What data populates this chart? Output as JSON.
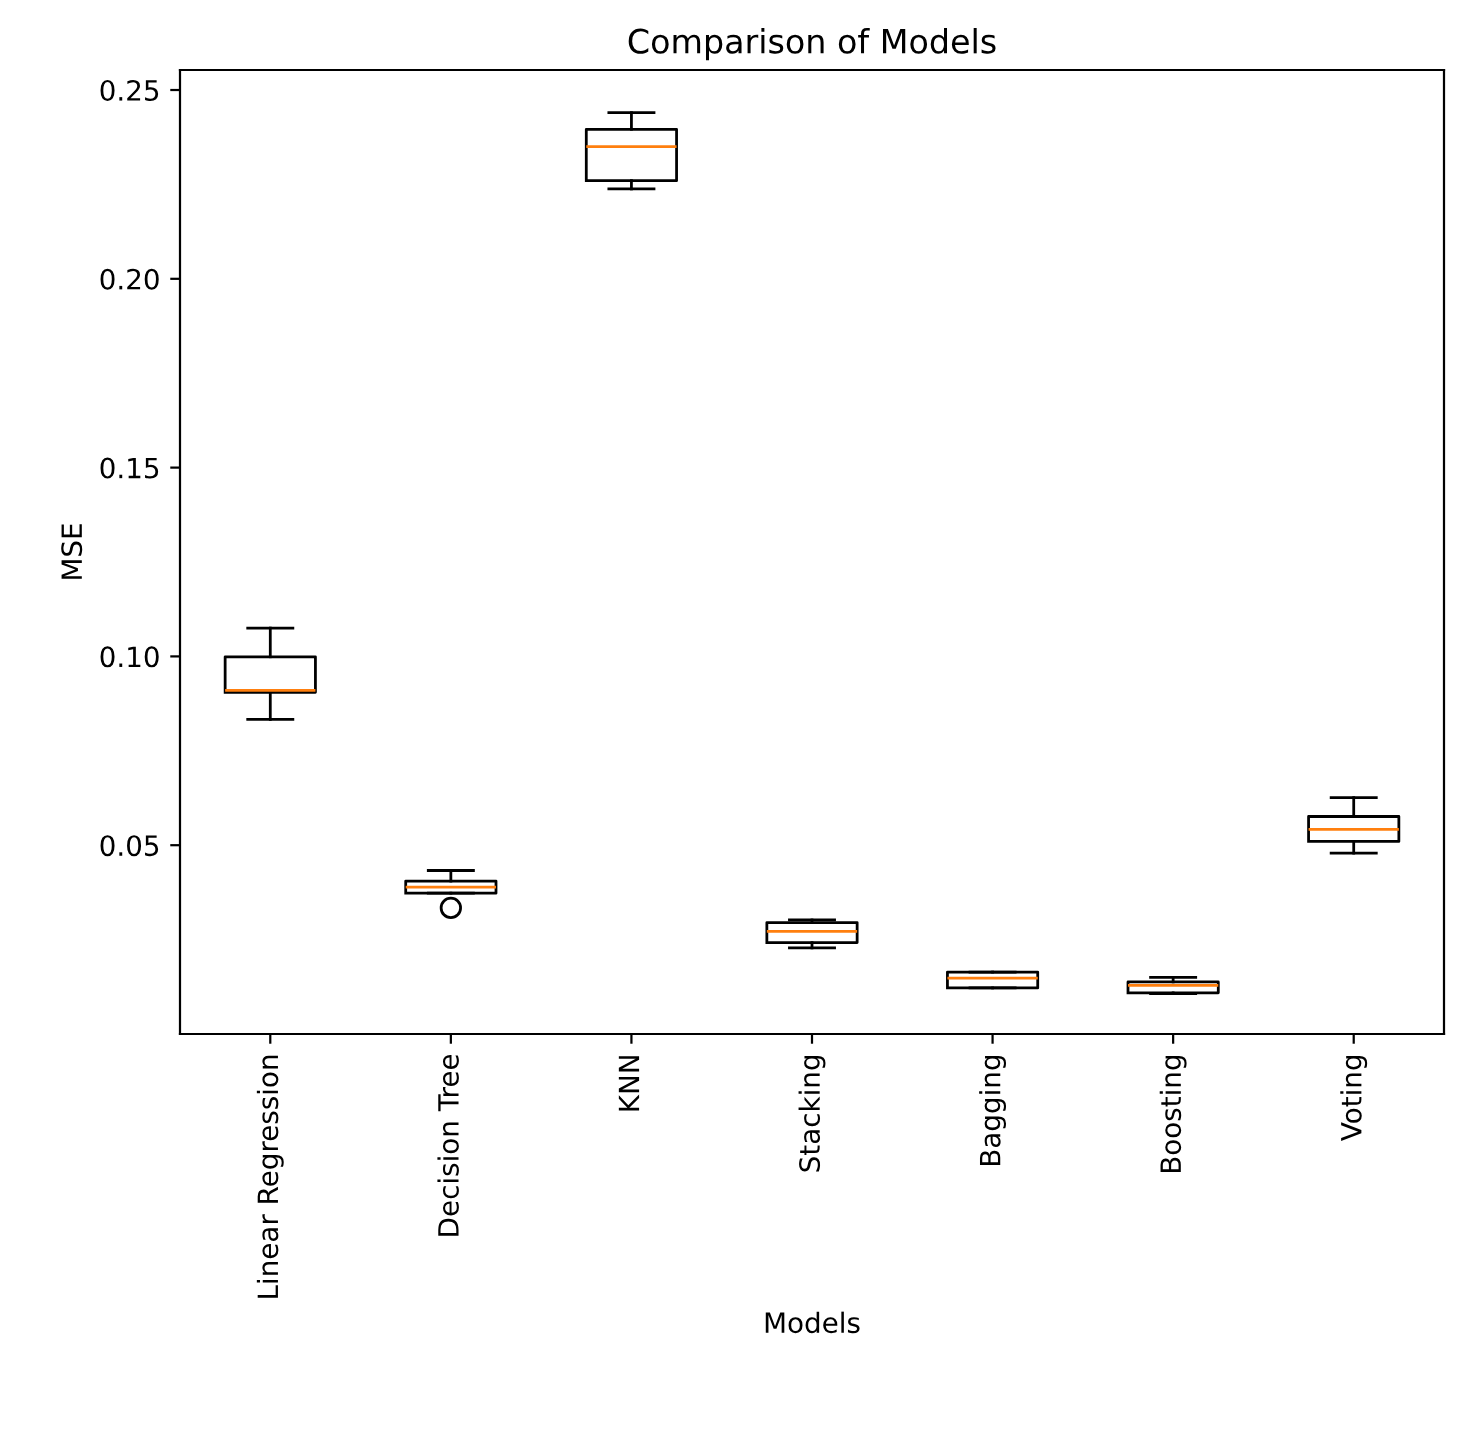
{
  "chart_data": {
    "type": "box",
    "title": "Comparison of Models",
    "xlabel": "Models",
    "ylabel": "MSE",
    "categories": [
      "Linear Regression",
      "Decision Tree",
      "KNN",
      "Stacking",
      "Bagging",
      "Boosting",
      "Voting"
    ],
    "boxes": [
      {
        "low": 0.0833,
        "q1": 0.0905,
        "median": 0.091,
        "q3": 0.0999,
        "high": 0.1075
      },
      {
        "low": 0.0373,
        "q1": 0.0373,
        "median": 0.0389,
        "q3": 0.0405,
        "high": 0.0433,
        "outliers": [
          0.0334
        ]
      },
      {
        "low": 0.2238,
        "q1": 0.226,
        "median": 0.235,
        "q3": 0.2396,
        "high": 0.244
      },
      {
        "low": 0.0228,
        "q1": 0.0242,
        "median": 0.0272,
        "q3": 0.0295,
        "high": 0.0302
      },
      {
        "low": 0.0122,
        "q1": 0.0122,
        "median": 0.0148,
        "q3": 0.0164,
        "high": 0.0164
      },
      {
        "low": 0.0107,
        "q1": 0.0109,
        "median": 0.0129,
        "q3": 0.0138,
        "high": 0.015
      },
      {
        "low": 0.0479,
        "q1": 0.051,
        "median": 0.0542,
        "q3": 0.0576,
        "high": 0.0626
      }
    ],
    "ylim": [
      0.0,
      0.2553
    ],
    "yticks": [
      {
        "value": 0.05,
        "label": "0.05"
      },
      {
        "value": 0.1,
        "label": "0.10"
      },
      {
        "value": 0.15,
        "label": "0.15"
      },
      {
        "value": 0.2,
        "label": "0.20"
      },
      {
        "value": 0.25,
        "label": "0.25"
      }
    ],
    "grid": false,
    "legend": false
  }
}
